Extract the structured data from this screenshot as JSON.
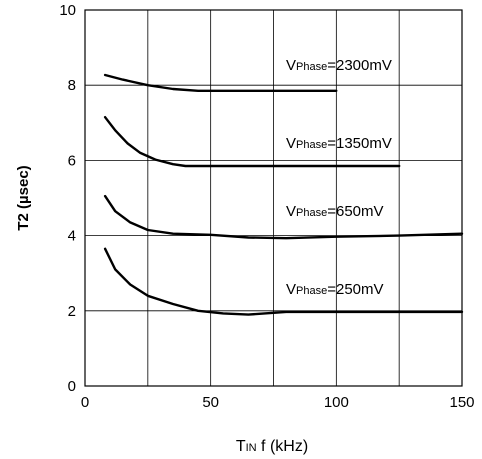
{
  "chart_data": {
    "type": "line",
    "title": "",
    "ylabel": "T2 (µsec)",
    "xlabel": {
      "main": "T",
      "sub": "IN",
      "rest": " f (kHz)"
    },
    "xlim": [
      0,
      150
    ],
    "ylim": [
      0,
      10
    ],
    "xticks": [
      0,
      50,
      100,
      150
    ],
    "yticks": [
      0,
      2,
      4,
      6,
      8,
      10
    ],
    "grid": true,
    "series": [
      {
        "name": "VPhase=2300mV",
        "label": {
          "v": "V",
          "sub": "Phase",
          "rest": "=2300mV"
        },
        "points": [
          [
            8,
            8.27
          ],
          [
            15,
            8.15
          ],
          [
            25,
            8.0
          ],
          [
            35,
            7.9
          ],
          [
            45,
            7.85
          ],
          [
            60,
            7.85
          ],
          [
            80,
            7.85
          ],
          [
            100,
            7.85
          ]
        ]
      },
      {
        "name": "VPhase=1350mV",
        "label": {
          "v": "V",
          "sub": "Phase",
          "rest": "=1350mV"
        },
        "points": [
          [
            8,
            7.15
          ],
          [
            12,
            6.8
          ],
          [
            17,
            6.45
          ],
          [
            22,
            6.2
          ],
          [
            28,
            6.02
          ],
          [
            35,
            5.9
          ],
          [
            40,
            5.85
          ],
          [
            60,
            5.85
          ],
          [
            90,
            5.85
          ],
          [
            125,
            5.85
          ]
        ]
      },
      {
        "name": "VPhase=650mV",
        "label": {
          "v": "V",
          "sub": "Phase",
          "rest": "=650mV"
        },
        "points": [
          [
            8,
            5.05
          ],
          [
            12,
            4.65
          ],
          [
            18,
            4.35
          ],
          [
            25,
            4.15
          ],
          [
            35,
            4.05
          ],
          [
            50,
            4.02
          ],
          [
            65,
            3.95
          ],
          [
            80,
            3.93
          ],
          [
            100,
            3.97
          ],
          [
            125,
            4.0
          ],
          [
            150,
            4.05
          ]
        ]
      },
      {
        "name": "VPhase=250mV",
        "label": {
          "v": "V",
          "sub": "Phase",
          "rest": "=250mV"
        },
        "points": [
          [
            8,
            3.65
          ],
          [
            12,
            3.1
          ],
          [
            18,
            2.7
          ],
          [
            25,
            2.4
          ],
          [
            35,
            2.18
          ],
          [
            45,
            2.0
          ],
          [
            55,
            1.93
          ],
          [
            65,
            1.9
          ],
          [
            80,
            1.97
          ],
          [
            100,
            1.97
          ],
          [
            125,
            1.97
          ],
          [
            150,
            1.97
          ]
        ]
      }
    ]
  }
}
